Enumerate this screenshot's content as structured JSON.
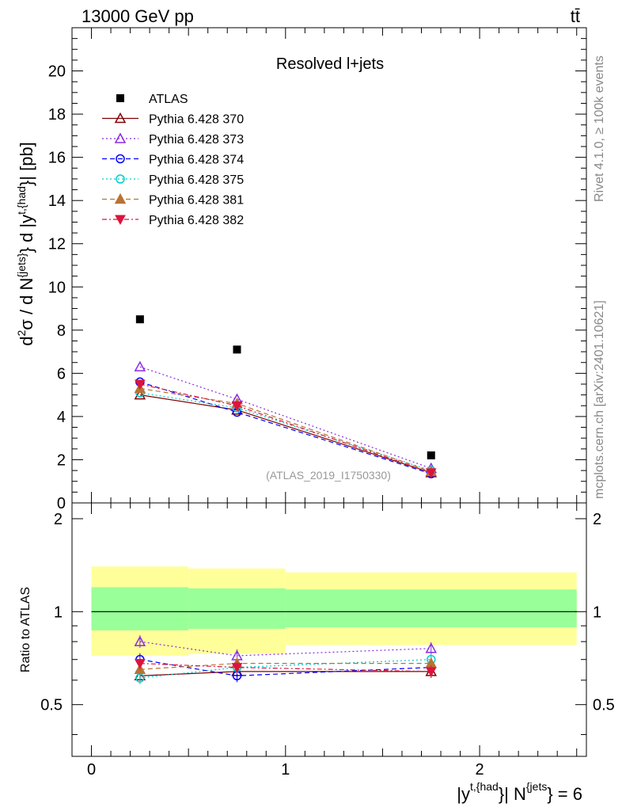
{
  "header": {
    "left_label": "13000 GeV pp",
    "right_label": "tt̄"
  },
  "side_labels": {
    "rivet": "Rivet 4.1.0, ≥ 100k events",
    "mcplots": "mcplots.cern.ch [arXiv:2401.10621]"
  },
  "colors": {
    "atlas": "#000000",
    "p370": "#800000",
    "p373": "#8a2be2",
    "p374": "#0000ff",
    "p375": "#00cdcd",
    "p381": "#b87333",
    "p382": "#dc143c",
    "band_yellow": "#ffff99",
    "band_green": "#99ff99"
  },
  "chart_data": [
    {
      "type": "scatter",
      "title": "Resolved l+jets",
      "watermark": "(ATLAS_2019_I1750330)",
      "ylabel": {
        "base": "d",
        "sup1": "2",
        "sigma": "σ",
        "sep": " / ",
        "dN": "d N",
        "sup_jets": "{jets}",
        "brace": "} d |y",
        "sup_thad": "t,{had",
        "end": "}| [pb]"
      },
      "xlim": [
        -0.1,
        2.55
      ],
      "ylim": [
        0,
        22
      ],
      "yticks": [
        0,
        2,
        4,
        6,
        8,
        10,
        12,
        14,
        16,
        18,
        20
      ],
      "x": [
        0.25,
        0.75,
        1.75
      ],
      "series": [
        {
          "name": "ATLAS",
          "marker": "square-filled",
          "values": [
            8.5,
            7.1,
            2.2
          ],
          "line": "none"
        },
        {
          "name": "Pythia 6.428 370",
          "marker": "triangle-up-open",
          "values": [
            5.0,
            4.3,
            1.4
          ],
          "line": "solid"
        },
        {
          "name": "Pythia 6.428 373",
          "marker": "triangle-up-open",
          "values": [
            6.3,
            4.8,
            1.6
          ],
          "line": "dotted"
        },
        {
          "name": "Pythia 6.428 374",
          "marker": "circle-open",
          "values": [
            5.6,
            4.2,
            1.35
          ],
          "line": "dashed"
        },
        {
          "name": "Pythia 6.428 375",
          "marker": "circle-open",
          "values": [
            5.1,
            4.4,
            1.5
          ],
          "line": "dotted"
        },
        {
          "name": "Pythia 6.428 381",
          "marker": "triangle-up-filled",
          "values": [
            5.3,
            4.6,
            1.45
          ],
          "line": "dashed"
        },
        {
          "name": "Pythia 6.428 382",
          "marker": "triangle-down-filled",
          "values": [
            5.5,
            4.5,
            1.4
          ],
          "line": "dashdot"
        }
      ]
    },
    {
      "type": "scatter",
      "ylabel": "Ratio to ATLAS",
      "xlabel": {
        "pre": "|y",
        "sup_thad": "t,{had",
        "mid": "}| N",
        "sup_jets": "{jets",
        "post": "} = 6"
      },
      "xlim": [
        -0.1,
        2.55
      ],
      "ylim": [
        0.34,
        2.25
      ],
      "yticks": [
        0.5,
        1,
        2
      ],
      "ytick_labels": [
        "0.5",
        "1",
        "2"
      ],
      "xticks": [
        0,
        1,
        2
      ],
      "xtick_labels": [
        "0",
        "1",
        "2"
      ],
      "bins": [
        [
          0,
          0.5
        ],
        [
          0.5,
          1.0
        ],
        [
          1.0,
          2.5
        ]
      ],
      "band_yellow": [
        [
          0.72,
          1.4
        ],
        [
          0.73,
          1.38
        ],
        [
          0.78,
          1.34
        ]
      ],
      "band_green": [
        [
          0.87,
          1.2
        ],
        [
          0.88,
          1.19
        ],
        [
          0.89,
          1.18
        ]
      ],
      "x": [
        0.25,
        0.75,
        1.75
      ],
      "series": [
        {
          "name": "Pythia 6.428 370",
          "values": [
            0.62,
            0.64,
            0.64
          ]
        },
        {
          "name": "Pythia 6.428 373",
          "values": [
            0.8,
            0.72,
            0.76
          ]
        },
        {
          "name": "Pythia 6.428 374",
          "values": [
            0.7,
            0.62,
            0.66
          ]
        },
        {
          "name": "Pythia 6.428 375",
          "values": [
            0.61,
            0.66,
            0.7
          ]
        },
        {
          "name": "Pythia 6.428 381",
          "values": [
            0.65,
            0.68,
            0.68
          ]
        },
        {
          "name": "Pythia 6.428 382",
          "values": [
            0.68,
            0.66,
            0.64
          ]
        }
      ]
    }
  ]
}
